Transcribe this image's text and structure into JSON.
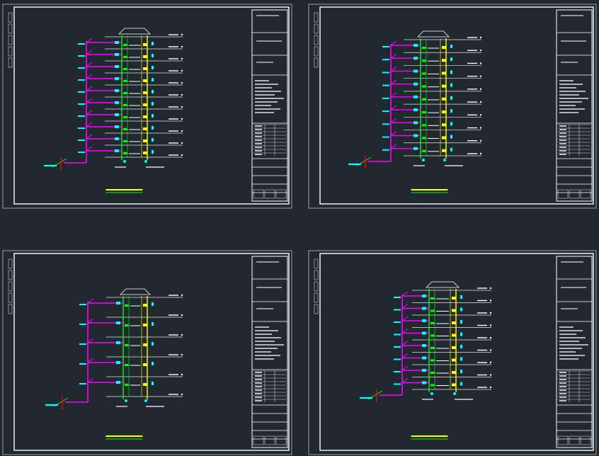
{
  "viewport": {
    "background": "#212830"
  },
  "colors": {
    "frame": "#ffffff",
    "supply_pipe": "#ff00ff",
    "riser_a": "#00ff00",
    "riser_b": "#ffff00",
    "fixture": "#00ffff",
    "inlet_marker": "#ff0000"
  },
  "sheets": [
    {
      "id": "sheet-1",
      "floor_count": 10,
      "legend_title": "",
      "title_block": {
        "notes_lines": 10,
        "table_rows": 9
      }
    },
    {
      "id": "sheet-2",
      "floor_count": 9,
      "legend_title": "",
      "title_block": {
        "notes_lines": 10,
        "table_rows": 9
      }
    },
    {
      "id": "sheet-3",
      "floor_count": 5,
      "legend_title": "",
      "title_block": {
        "notes_lines": 10,
        "table_rows": 9
      }
    },
    {
      "id": "sheet-4",
      "floor_count": 8,
      "legend_title": "",
      "title_block": {
        "notes_lines": 10,
        "table_rows": 9
      }
    }
  ]
}
